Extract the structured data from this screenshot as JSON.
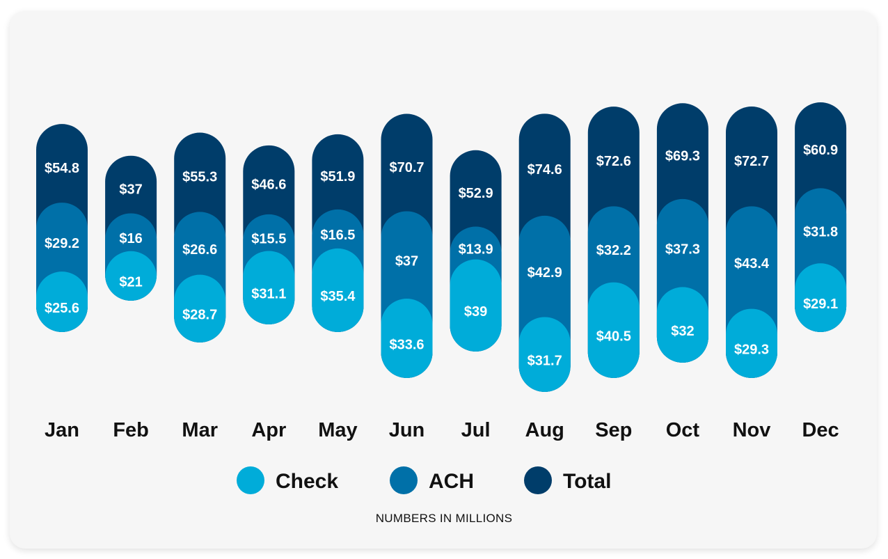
{
  "chart_data": {
    "type": "bar",
    "stacked": true,
    "title": "",
    "xlabel": "",
    "ylabel": "",
    "note": "NUMBERS IN MILLIONS",
    "value_prefix": "$",
    "categories": [
      "Jan",
      "Feb",
      "Mar",
      "Apr",
      "May",
      "Jun",
      "Jul",
      "Aug",
      "Sep",
      "Oct",
      "Nov",
      "Dec"
    ],
    "series": [
      {
        "name": "Check",
        "color": "#00acd9",
        "values": [
          25.6,
          21,
          28.7,
          31.1,
          35.4,
          33.6,
          39,
          31.7,
          40.5,
          32,
          29.3,
          29.1
        ]
      },
      {
        "name": "ACH",
        "color": "#0070a8",
        "values": [
          29.2,
          16,
          26.6,
          15.5,
          16.5,
          37,
          13.9,
          42.9,
          32.2,
          37.3,
          43.4,
          31.8
        ]
      },
      {
        "name": "Total",
        "color": "#003d6a",
        "values": [
          54.8,
          37,
          55.3,
          46.6,
          51.9,
          70.7,
          52.9,
          74.6,
          72.6,
          69.3,
          72.7,
          60.9
        ]
      }
    ],
    "legend_position": "bottom",
    "grid": false
  }
}
